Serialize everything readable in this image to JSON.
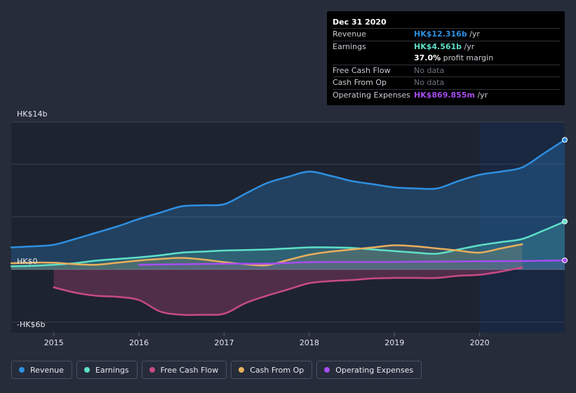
{
  "chart_data": {
    "type": "area",
    "currency_note": "values in HK$ billions",
    "y_axis": {
      "top_label": "HK$14b",
      "zero_label": "HK$0",
      "bottom_label": "-HK$6b",
      "ylim": [
        -6,
        14
      ]
    },
    "x_axis": {
      "ticks": [
        "2015",
        "2016",
        "2017",
        "2018",
        "2019",
        "2020"
      ],
      "xlim": [
        2014.5,
        2021.0
      ]
    },
    "forecast_from": 2020.0,
    "series": [
      {
        "name": "Revenue",
        "color": "#2e8fe0",
        "points": [
          [
            2014.5,
            2.1
          ],
          [
            2014.75,
            2.2
          ],
          [
            2015.0,
            2.35
          ],
          [
            2015.25,
            2.9
          ],
          [
            2015.5,
            3.5
          ],
          [
            2015.75,
            4.1
          ],
          [
            2016.0,
            4.8
          ],
          [
            2016.25,
            5.4
          ],
          [
            2016.5,
            6.0
          ],
          [
            2016.75,
            6.1
          ],
          [
            2017.0,
            6.2
          ],
          [
            2017.25,
            7.2
          ],
          [
            2017.5,
            8.2
          ],
          [
            2017.75,
            8.8
          ],
          [
            2018.0,
            9.3
          ],
          [
            2018.25,
            8.9
          ],
          [
            2018.5,
            8.4
          ],
          [
            2018.75,
            8.1
          ],
          [
            2019.0,
            7.8
          ],
          [
            2019.25,
            7.7
          ],
          [
            2019.5,
            7.7
          ],
          [
            2019.75,
            8.4
          ],
          [
            2020.0,
            9.0
          ],
          [
            2020.25,
            9.3
          ],
          [
            2020.5,
            9.7
          ],
          [
            2020.75,
            11.0
          ],
          [
            2021.0,
            12.316
          ]
        ],
        "end_dot": true
      },
      {
        "name": "Earnings",
        "color": "#5ee0c8",
        "points": [
          [
            2014.5,
            0.3
          ],
          [
            2014.75,
            0.35
          ],
          [
            2015.0,
            0.45
          ],
          [
            2015.25,
            0.6
          ],
          [
            2015.5,
            0.85
          ],
          [
            2015.75,
            1.0
          ],
          [
            2016.0,
            1.15
          ],
          [
            2016.25,
            1.35
          ],
          [
            2016.5,
            1.6
          ],
          [
            2016.75,
            1.7
          ],
          [
            2017.0,
            1.8
          ],
          [
            2017.25,
            1.85
          ],
          [
            2017.5,
            1.9
          ],
          [
            2017.75,
            2.0
          ],
          [
            2018.0,
            2.1
          ],
          [
            2018.25,
            2.1
          ],
          [
            2018.5,
            2.05
          ],
          [
            2018.75,
            1.9
          ],
          [
            2019.0,
            1.75
          ],
          [
            2019.25,
            1.6
          ],
          [
            2019.5,
            1.5
          ],
          [
            2019.75,
            1.9
          ],
          [
            2020.0,
            2.3
          ],
          [
            2020.25,
            2.6
          ],
          [
            2020.5,
            2.9
          ],
          [
            2020.75,
            3.7
          ],
          [
            2021.0,
            4.561
          ]
        ],
        "end_dot": true
      },
      {
        "name": "Free Cash Flow",
        "color": "#c74a85",
        "points": [
          [
            2015.0,
            -1.7
          ],
          [
            2015.25,
            -2.2
          ],
          [
            2015.5,
            -2.5
          ],
          [
            2015.75,
            -2.6
          ],
          [
            2016.0,
            -2.9
          ],
          [
            2016.25,
            -4.0
          ],
          [
            2016.5,
            -4.3
          ],
          [
            2016.75,
            -4.3
          ],
          [
            2017.0,
            -4.2
          ],
          [
            2017.25,
            -3.2
          ],
          [
            2017.5,
            -2.5
          ],
          [
            2017.75,
            -1.9
          ],
          [
            2018.0,
            -1.3
          ],
          [
            2018.25,
            -1.1
          ],
          [
            2018.5,
            -1.0
          ],
          [
            2018.75,
            -0.85
          ],
          [
            2019.0,
            -0.8
          ],
          [
            2019.25,
            -0.8
          ],
          [
            2019.5,
            -0.8
          ],
          [
            2019.75,
            -0.6
          ],
          [
            2020.0,
            -0.5
          ],
          [
            2020.25,
            -0.2
          ],
          [
            2020.5,
            0.2
          ]
        ],
        "end_dot": false
      },
      {
        "name": "Cash From Op",
        "color": "#e8ae5c",
        "points": [
          [
            2014.5,
            0.6
          ],
          [
            2014.75,
            0.65
          ],
          [
            2015.0,
            0.65
          ],
          [
            2015.25,
            0.5
          ],
          [
            2015.5,
            0.45
          ],
          [
            2015.75,
            0.65
          ],
          [
            2016.0,
            0.85
          ],
          [
            2016.25,
            1.0
          ],
          [
            2016.5,
            1.1
          ],
          [
            2016.75,
            0.95
          ],
          [
            2017.0,
            0.7
          ],
          [
            2017.25,
            0.5
          ],
          [
            2017.5,
            0.4
          ],
          [
            2017.75,
            0.9
          ],
          [
            2018.0,
            1.4
          ],
          [
            2018.25,
            1.7
          ],
          [
            2018.5,
            1.9
          ],
          [
            2018.75,
            2.1
          ],
          [
            2019.0,
            2.3
          ],
          [
            2019.25,
            2.2
          ],
          [
            2019.5,
            2.0
          ],
          [
            2019.75,
            1.8
          ],
          [
            2020.0,
            1.6
          ],
          [
            2020.25,
            2.0
          ],
          [
            2020.5,
            2.4
          ]
        ],
        "end_dot": false
      },
      {
        "name": "Operating Expenses",
        "color": "#a64df0",
        "points": [
          [
            2016.0,
            0.45
          ],
          [
            2016.5,
            0.5
          ],
          [
            2017.0,
            0.55
          ],
          [
            2017.5,
            0.55
          ],
          [
            2018.0,
            0.7
          ],
          [
            2018.5,
            0.72
          ],
          [
            2019.0,
            0.72
          ],
          [
            2019.5,
            0.75
          ],
          [
            2020.0,
            0.78
          ],
          [
            2020.5,
            0.8
          ],
          [
            2021.0,
            0.87
          ]
        ],
        "end_dot": true
      }
    ]
  },
  "tooltip": {
    "date": "Dec 31 2020",
    "rows": [
      {
        "key": "Revenue",
        "value": "HK$12.316b",
        "unit": "/yr",
        "color": "#2e8fe0"
      },
      {
        "key": "Earnings",
        "value": "HK$4.561b",
        "unit": "/yr",
        "color": "#5ee0c8"
      },
      {
        "key": "",
        "value": "37.0%",
        "unit": "profit margin",
        "color": "#ffffff"
      },
      {
        "key": "Free Cash Flow",
        "value": "No data",
        "unit": "",
        "color": "#6e737d"
      },
      {
        "key": "Cash From Op",
        "value": "No data",
        "unit": "",
        "color": "#6e737d"
      },
      {
        "key": "Operating Expenses",
        "value": "HK$869.855m",
        "unit": "/yr",
        "color": "#a64df0"
      }
    ]
  },
  "legend": [
    {
      "label": "Revenue",
      "color": "#2e8fe0"
    },
    {
      "label": "Earnings",
      "color": "#5ee0c8"
    },
    {
      "label": "Free Cash Flow",
      "color": "#c74a85"
    },
    {
      "label": "Cash From Op",
      "color": "#e8ae5c"
    },
    {
      "label": "Operating Expenses",
      "color": "#a64df0"
    }
  ]
}
